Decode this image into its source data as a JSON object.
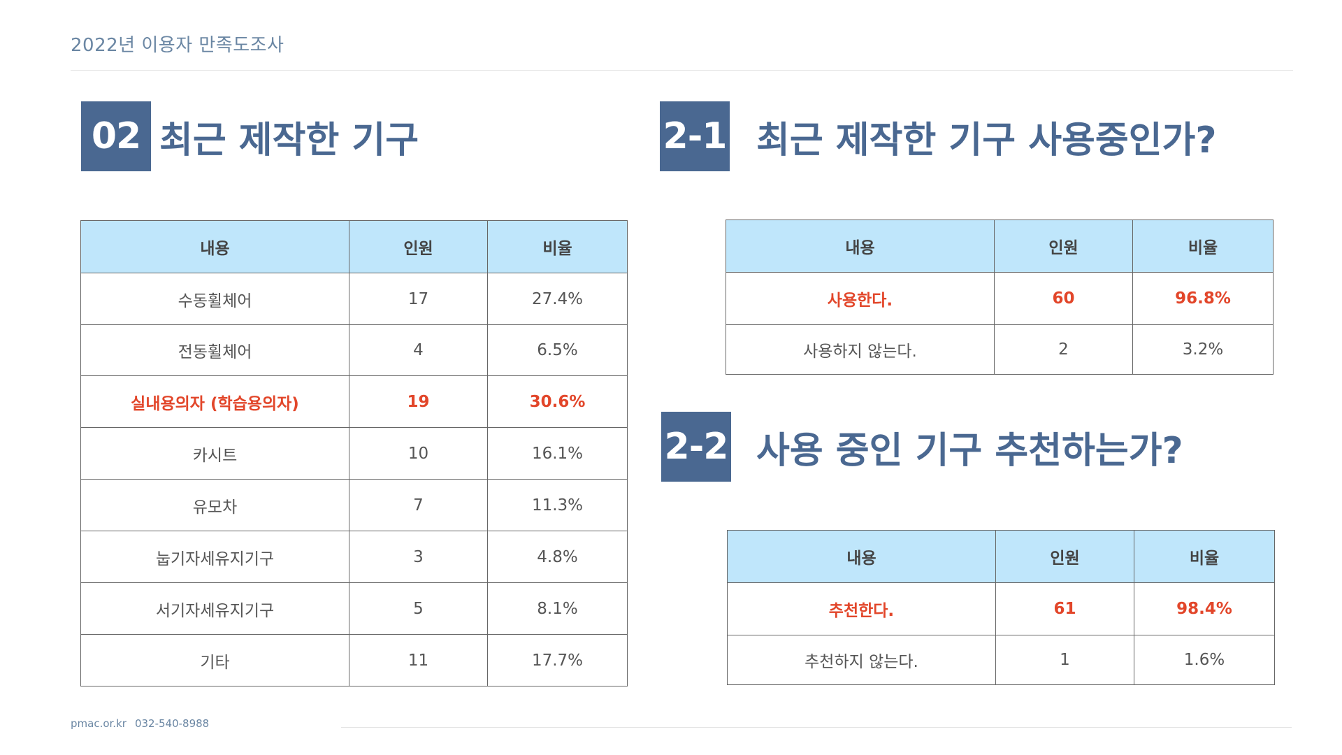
{
  "header": {
    "title": "2022년 이용자 만족도조사"
  },
  "section1": {
    "number": "02",
    "title": "최근 제작한 기구",
    "columns": [
      "내용",
      "인원",
      "비율"
    ],
    "rows": [
      {
        "label": "수동휠체어",
        "count": "17",
        "ratio": "27.4%",
        "highlight": false
      },
      {
        "label": "전동휠체어",
        "count": "4",
        "ratio": "6.5%",
        "highlight": false
      },
      {
        "label": "실내용의자 (학습용의자)",
        "count": "19",
        "ratio": "30.6%",
        "highlight": true
      },
      {
        "label": "카시트",
        "count": "10",
        "ratio": "16.1%",
        "highlight": false
      },
      {
        "label": "유모차",
        "count": "7",
        "ratio": "11.3%",
        "highlight": false
      },
      {
        "label": "눕기자세유지기구",
        "count": "3",
        "ratio": "4.8%",
        "highlight": false
      },
      {
        "label": "서기자세유지기구",
        "count": "5",
        "ratio": "8.1%",
        "highlight": false
      },
      {
        "label": "기타",
        "count": "11",
        "ratio": "17.7%",
        "highlight": false
      }
    ]
  },
  "section2_1": {
    "number": "2-1",
    "title": "최근 제작한 기구 사용중인가?",
    "columns": [
      "내용",
      "인원",
      "비율"
    ],
    "rows": [
      {
        "label": "사용한다.",
        "count": "60",
        "ratio": "96.8%",
        "highlight": true
      },
      {
        "label": "사용하지 않는다.",
        "count": "2",
        "ratio": "3.2%",
        "highlight": false
      }
    ]
  },
  "section2_2": {
    "number": "2-2",
    "title": "사용 중인 기구 추천하는가?",
    "columns": [
      "내용",
      "인원",
      "비율"
    ],
    "rows": [
      {
        "label": "추천한다.",
        "count": "61",
        "ratio": "98.4%",
        "highlight": true
      },
      {
        "label": "추천하지 않는다.",
        "count": "1",
        "ratio": "1.6%",
        "highlight": false
      }
    ]
  },
  "footer": {
    "website": "pmac.or.kr",
    "phone": "032-540-8988"
  },
  "colors": {
    "accent": "#4a6891",
    "header_bg": "#bfe6fb",
    "highlight": "#e2462a"
  }
}
